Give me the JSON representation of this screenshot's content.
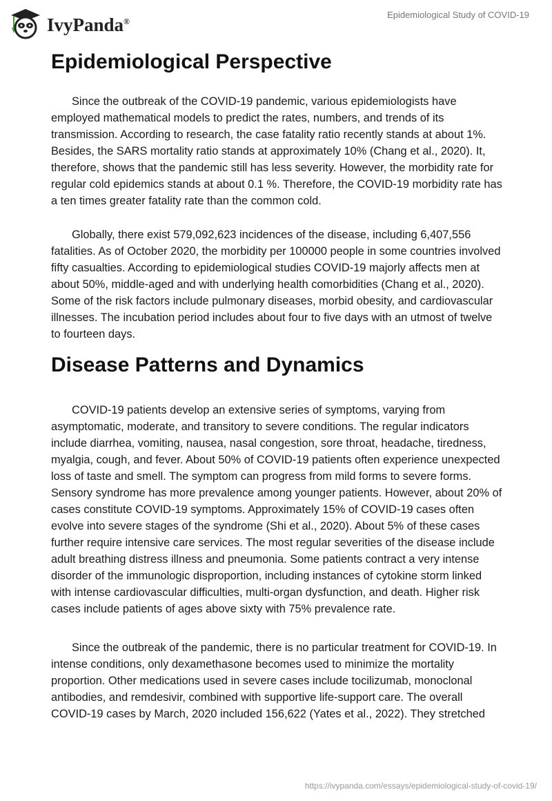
{
  "header": {
    "brand": "IvyPanda",
    "registered": "®",
    "doc_title": "Epidemiological Study of COVID-19"
  },
  "sections": [
    {
      "heading": "Epidemiological Perspective",
      "paragraphs": [
        "Since the outbreak of the COVID-19 pandemic, various epidemiologists have employed mathematical models to predict the rates, numbers, and trends of its transmission. According to research, the case fatality ratio recently stands at about 1%. Besides, the SARS mortality ratio stands at approximately 10% (Chang et al., 2020). It, therefore, shows that the pandemic still has less severity. However, the morbidity rate for regular cold epidemics stands at about 0.1 %. Therefore, the COVID-19 morbidity rate has a ten times greater fatality rate than the common cold.",
        "Globally, there exist 579,092,623 incidences of the disease, including 6,407,556 fatalities. As of October 2020, the morbidity per 100000 people in some countries involved fifty casualties. According to epidemiological studies COVID-19 majorly affects men at about 50%, middle-aged and with underlying health comorbidities (Chang et al., 2020). Some of the risk factors include pulmonary diseases, morbid obesity, and cardiovascular illnesses. The incubation period includes about four to five days with an utmost of twelve to fourteen days."
      ]
    },
    {
      "heading": "Disease Patterns and Dynamics",
      "paragraphs": [
        "COVID-19 patients develop an extensive series of symptoms, varying from asymptomatic, moderate, and transitory to severe conditions. The regular indicators include diarrhea, vomiting, nausea, nasal congestion, sore throat, headache, tiredness, myalgia, cough, and fever. About 50% of COVID-19 patients often experience unexpected loss of taste and smell. The symptom can progress from mild forms to severe forms. Sensory syndrome has more prevalence among younger patients. However, about 20% of cases constitute COVID-19 symptoms. Approximately 15% of COVID-19 cases often evolve into severe stages of the syndrome (Shi et al., 2020). About 5% of these cases further require intensive care services. The most regular severities of the disease include adult breathing distress illness and pneumonia. Some patients contract a very intense disorder of the immunologic disproportion, including instances of cytokine storm linked with intense cardiovascular difficulties, multi-organ dysfunction, and death. Higher risk cases include patients of ages above sixty with 75% prevalence rate.",
        "Since the outbreak of the pandemic, there is no particular treatment for COVID-19. In intense conditions, only dexamethasone becomes used to minimize the mortality proportion. Other medications used in severe cases include tocilizumab, monoclonal antibodies, and remdesivir, combined with supportive life-support care. The overall COVID-19 cases by March, 2020 included 156,622 (Yates et al., 2022). They stretched"
      ]
    }
  ],
  "footer": {
    "url": "https://ivypanda.com/essays/epidemiological-study-of-covid-19/"
  }
}
